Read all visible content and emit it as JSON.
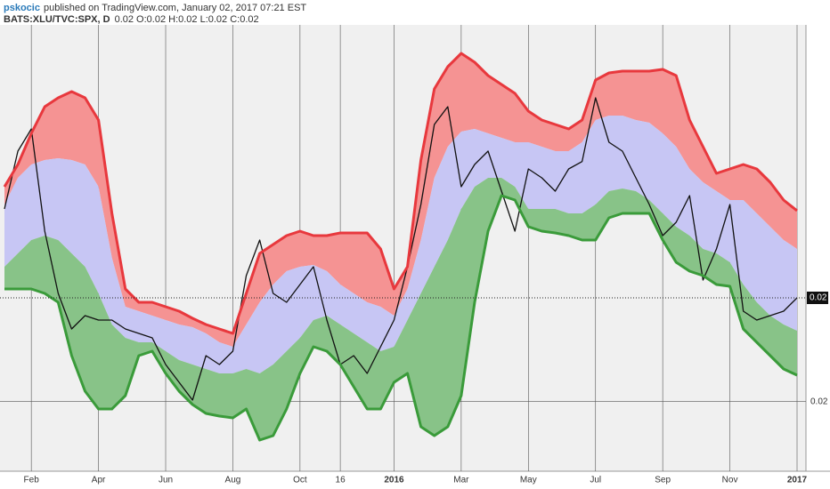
{
  "chart_data": {
    "type": "line",
    "author": "pskocic",
    "published": "published on TradingView.com, January 02, 2017 07:21 EST",
    "symbol": "BATS:XLU/TVC:SPX, D",
    "ohlc": "0.02 O:0.02 H:0.02 L:0.02 C:0.02",
    "last_label": "0.02",
    "categories": [
      null,
      null,
      "Feb",
      null,
      null,
      null,
      null,
      "Apr",
      null,
      null,
      null,
      null,
      "Jun",
      null,
      null,
      null,
      null,
      "Aug",
      null,
      null,
      null,
      null,
      "Oct",
      null,
      null,
      "16",
      null,
      null,
      null,
      "2016",
      null,
      null,
      null,
      null,
      "Mar",
      null,
      null,
      null,
      null,
      "May",
      null,
      null,
      null,
      null,
      "Jul",
      null,
      null,
      null,
      null,
      "Sep",
      null,
      null,
      null,
      null,
      "Nov",
      null,
      null,
      null,
      null,
      "2017"
    ],
    "ylim": [
      0.02053,
      0.023542
    ],
    "yticks": [
      {
        "value": 0.021,
        "label": "0.02"
      }
    ],
    "grid": true,
    "series": [
      {
        "color": "#111111",
        "values": [
          0.0223,
          0.02269,
          0.02284,
          0.02215,
          0.02173,
          0.02149,
          0.02158,
          0.02155,
          0.02155,
          0.02149,
          0.02146,
          0.02143,
          0.02125,
          0.02113,
          0.02101,
          0.02131,
          0.02125,
          0.02134,
          0.02185,
          0.02209,
          0.02173,
          0.02167,
          0.02179,
          0.02191,
          0.02155,
          0.02125,
          0.02131,
          0.02119,
          0.02137,
          0.02155,
          0.02191,
          0.02233,
          0.02287,
          0.02299,
          0.02245,
          0.0226,
          0.02269,
          0.02242,
          0.02215,
          0.02257,
          0.02251,
          0.02242,
          0.02257,
          0.02262,
          0.02305,
          0.02275,
          0.02269,
          0.02251,
          0.02233,
          0.02212,
          0.02221,
          0.02239,
          0.02182,
          0.02203,
          0.02233,
          0.02161,
          0.02155,
          0.02158,
          0.02161,
          0.0217
        ]
      },
      {
        "color": "#e8383d",
        "fill": "#f59393",
        "values": [
          0.02245,
          0.0226,
          0.02281,
          0.02299,
          0.02305,
          0.023092,
          0.02305,
          0.0229,
          0.02227,
          0.02176,
          0.02167,
          0.02167,
          0.02164,
          0.02161,
          0.021562,
          0.02152,
          0.02149,
          0.02146,
          0.02173,
          0.022,
          0.02206,
          0.02212,
          0.02215,
          0.02212,
          0.02212,
          0.022138,
          0.022138,
          0.022138,
          0.02203,
          0.02176,
          0.02191,
          0.02263,
          0.02311,
          0.02326,
          0.02335,
          0.02329,
          0.0232,
          0.02314,
          0.02308,
          0.02296,
          0.0229,
          0.02287,
          0.02284,
          0.0229,
          0.02317,
          0.023218,
          0.02323,
          0.02323,
          0.02323,
          0.023242,
          0.0232,
          0.0229,
          0.02272,
          0.02254,
          0.02257,
          0.0226,
          0.02257,
          0.02248,
          0.02236,
          0.022288
        ]
      },
      {
        "fill": "#c7c6f4",
        "values": [
          0.02233,
          0.02251,
          0.0226,
          0.02263,
          0.022642,
          0.02263,
          0.0226,
          0.02245,
          0.02197,
          0.02164,
          0.02161,
          0.02158,
          0.02155,
          0.02152,
          0.021502,
          0.02146,
          0.0214,
          0.02137,
          0.02152,
          0.02167,
          0.02179,
          0.02188,
          0.02191,
          0.021922,
          0.02188,
          0.02179,
          0.02173,
          0.02167,
          0.02164,
          0.02158,
          0.02176,
          0.02209,
          0.02251,
          0.02272,
          0.022822,
          0.02284,
          0.02281,
          0.02278,
          0.02275,
          0.02275,
          0.02272,
          0.02269,
          0.02269,
          0.02275,
          0.0229,
          0.02293,
          0.02293,
          0.0229,
          0.022882,
          0.02281,
          0.02272,
          0.02257,
          0.02248,
          0.02242,
          0.02236,
          0.02236,
          0.02227,
          0.02218,
          0.02209,
          0.02203
        ]
      },
      {
        "fill": "#88c388",
        "values": [
          0.02191,
          0.022,
          0.02209,
          0.02212,
          0.02209,
          0.022,
          0.02191,
          0.02173,
          0.02152,
          0.02143,
          0.0214,
          0.0214,
          0.02134,
          0.02128,
          0.02125,
          0.02122,
          0.02119,
          0.02119,
          0.02122,
          0.02119,
          0.02125,
          0.02134,
          0.02143,
          0.02155,
          0.02158,
          0.02152,
          0.02146,
          0.0214,
          0.02134,
          0.02137,
          0.02155,
          0.02173,
          0.02191,
          0.02209,
          0.0223,
          0.02245,
          0.02251,
          0.02251,
          0.02245,
          0.0223,
          0.0223,
          0.0223,
          0.02227,
          0.02227,
          0.02233,
          0.02242,
          0.022438,
          0.02242,
          0.02236,
          0.02227,
          0.02218,
          0.02212,
          0.02203,
          0.022,
          0.02194,
          0.02179,
          0.02167,
          0.02158,
          0.02152,
          0.021478
        ]
      },
      {
        "color": "#3a9b3a",
        "values": [
          0.02176,
          0.02176,
          0.02176,
          0.02173,
          0.02167,
          0.02131,
          0.02107,
          0.02095,
          0.02095,
          0.02104,
          0.02131,
          0.02134,
          0.02119,
          0.02107,
          0.02098,
          0.02092,
          0.020902,
          0.02089,
          0.02095,
          0.02074,
          0.02077,
          0.02095,
          0.02119,
          0.02137,
          0.02134,
          0.02125,
          0.0211,
          0.02095,
          0.02095,
          0.02113,
          0.02119,
          0.02083,
          0.02077,
          0.02083,
          0.02104,
          0.02167,
          0.02215,
          0.02239,
          0.02236,
          0.02218,
          0.02215,
          0.022138,
          0.02212,
          0.02209,
          0.02209,
          0.02224,
          0.02227,
          0.02227,
          0.02227,
          0.02209,
          0.02194,
          0.02188,
          0.02185,
          0.02179,
          0.021778,
          0.02149,
          0.0214,
          0.02131,
          0.02122,
          0.021178
        ]
      }
    ]
  }
}
